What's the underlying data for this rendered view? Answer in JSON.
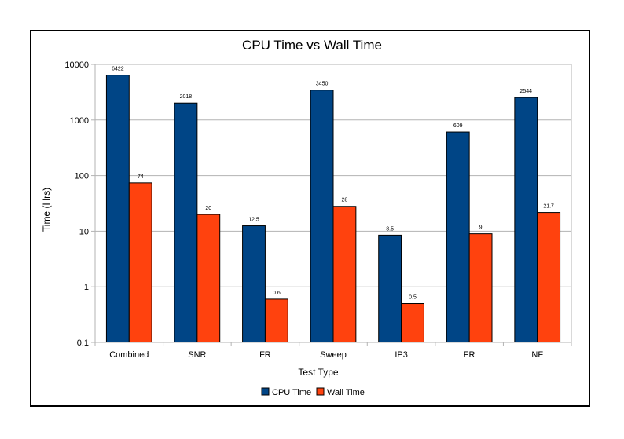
{
  "chart_data": {
    "type": "bar",
    "title": "CPU Time vs Wall Time",
    "xlabel": "Test Type",
    "ylabel": "Time (Hrs)",
    "yscale": "log",
    "ylim": [
      0.1,
      10000
    ],
    "yticks": [
      "0.1",
      "1",
      "10",
      "100",
      "1000",
      "10000"
    ],
    "grid": true,
    "legend_position": "bottom",
    "categories": [
      "Combined",
      "SNR",
      "FR",
      "Sweep",
      "IP3",
      "FR",
      "NF"
    ],
    "series": [
      {
        "name": "CPU Time",
        "color": "#004586",
        "values": [
          6422,
          2018,
          12.5,
          3450,
          8.5,
          609,
          2544
        ],
        "labels": [
          "6422",
          "2018",
          "12.5",
          "3450",
          "8.5",
          "609",
          "2544"
        ]
      },
      {
        "name": "Wall Time",
        "color": "#ff420e",
        "values": [
          74,
          20,
          0.6,
          28,
          0.5,
          9,
          21.7
        ],
        "labels": [
          "74",
          "20",
          "0.6",
          "28",
          "0.5",
          "9",
          "21.7"
        ]
      }
    ]
  }
}
